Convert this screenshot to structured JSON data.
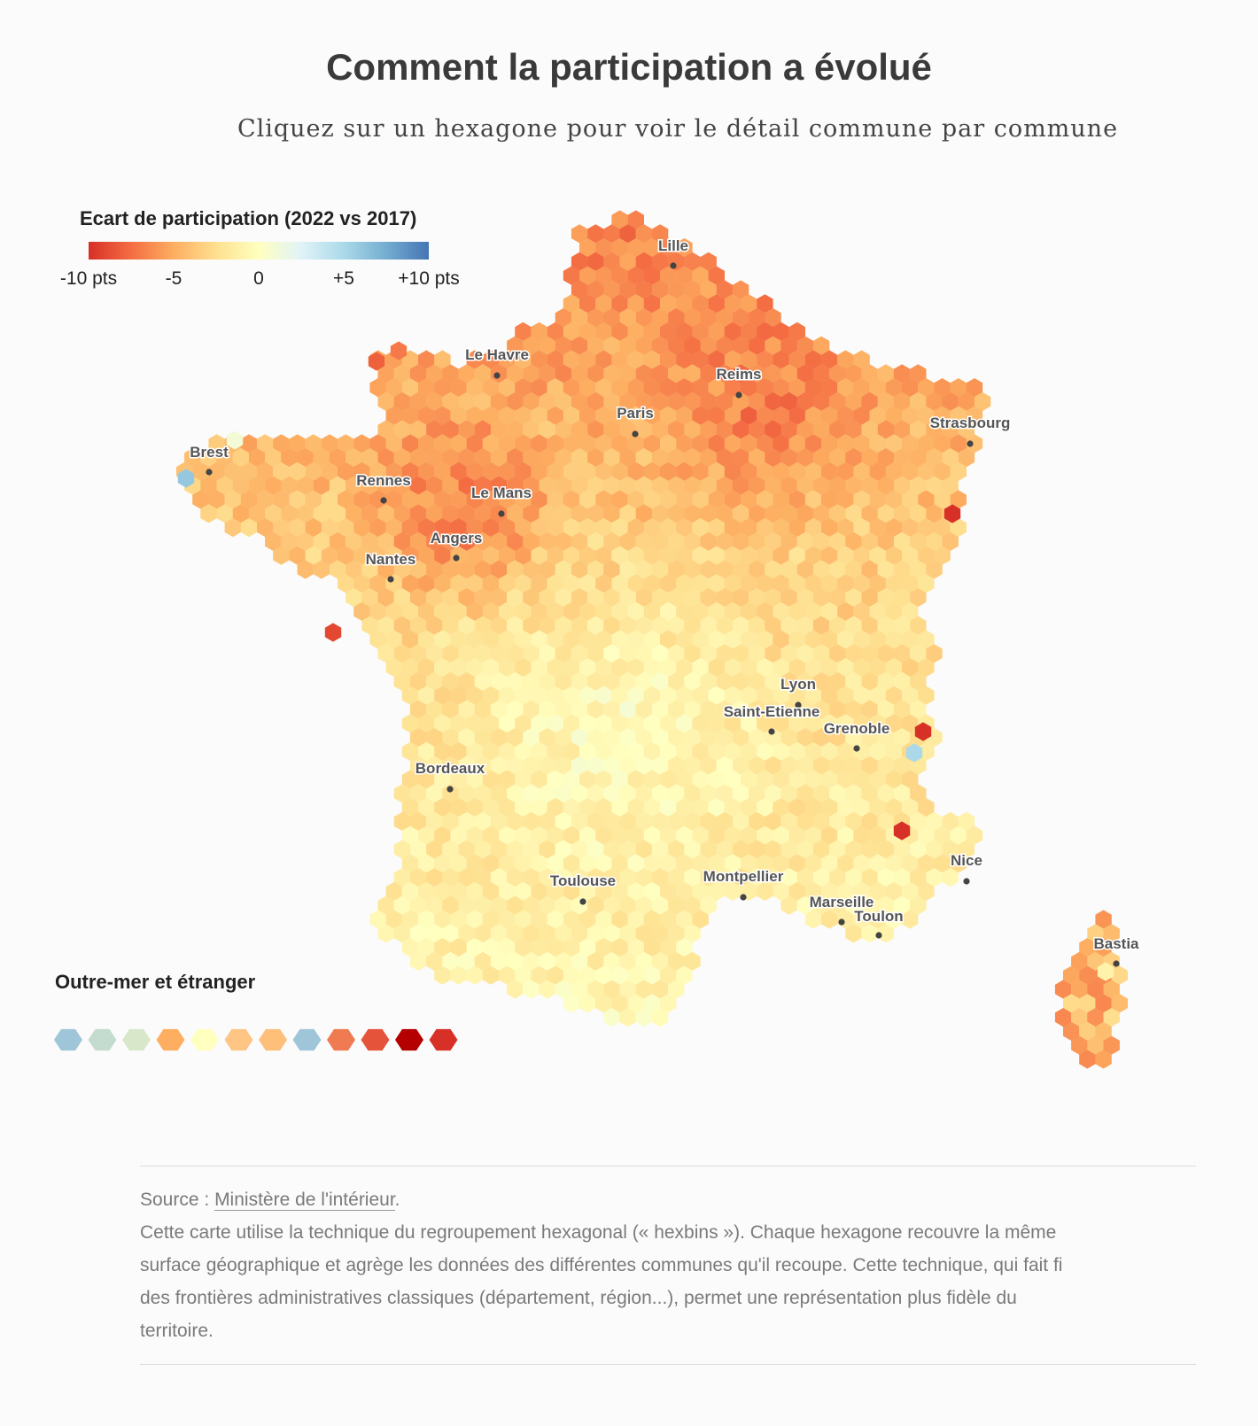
{
  "header": {
    "title": "Comment la participation a évolué",
    "subtitle": "Cliquez sur un hexagone pour voir le détail commune par commune"
  },
  "legend": {
    "title": "Ecart de participation (2022 vs 2017)",
    "ticks": [
      "-10 pts",
      "-5",
      "0",
      "+5",
      "+10 pts"
    ],
    "colors": [
      "#d73027",
      "#f46d43",
      "#fdae61",
      "#fee090",
      "#ffffbf",
      "#e0f3f8",
      "#abd9e9",
      "#74add1",
      "#4575b4"
    ]
  },
  "cities": [
    {
      "name": "Lille"
    },
    {
      "name": "Le Havre"
    },
    {
      "name": "Reims"
    },
    {
      "name": "Paris"
    },
    {
      "name": "Strasbourg"
    },
    {
      "name": "Brest"
    },
    {
      "name": "Rennes"
    },
    {
      "name": "Le Mans"
    },
    {
      "name": "Angers"
    },
    {
      "name": "Nantes"
    },
    {
      "name": "Lyon"
    },
    {
      "name": "Saint-Etienne"
    },
    {
      "name": "Grenoble"
    },
    {
      "name": "Bordeaux"
    },
    {
      "name": "Toulouse"
    },
    {
      "name": "Montpellier"
    },
    {
      "name": "Nice"
    },
    {
      "name": "Marseille"
    },
    {
      "name": "Toulon"
    },
    {
      "name": "Bastia"
    }
  ],
  "outre_mer": {
    "title": "Outre-mer et étranger",
    "colors": [
      "#9ec6d8",
      "#c3dccf",
      "#d8e7c9",
      "#fdae61",
      "#ffffbf",
      "#fec584",
      "#fdbf7a",
      "#9ec6d8",
      "#f07b52",
      "#e5533a",
      "#b40000",
      "#d73027"
    ]
  },
  "footer": {
    "source_label": "Source :",
    "source_link": "Ministère de l'intérieur",
    "source_end": ".",
    "note_lines": [
      "Cette carte utilise la technique du regroupement hexagonal (« hexbins »). Chaque hexagone recouvre la même",
      "surface géographique et agrège les données des différentes communes qu'il recoupe. Cette technique, qui fait fi",
      "des frontières administratives classiques (département, région...), permet une représentation plus fidèle du",
      "territoire."
    ]
  }
}
